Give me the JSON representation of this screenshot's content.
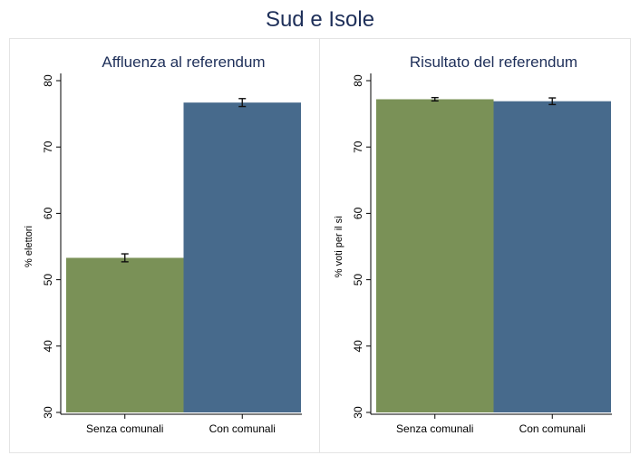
{
  "suptitle": "Sud e Isole",
  "chart_data": [
    {
      "type": "bar",
      "title": "Affluenza al referendum",
      "xlabel": "",
      "ylabel": "% elettori",
      "categories": [
        "Senza comunali",
        "Con comunali"
      ],
      "values": [
        53.3,
        76.7
      ],
      "error": [
        0.6,
        0.6
      ],
      "ylim": [
        30,
        80
      ],
      "yticks": [
        30,
        40,
        50,
        60,
        70,
        80
      ],
      "colors": [
        "#7a9157",
        "#476a8c"
      ],
      "grid": false,
      "legend": "none"
    },
    {
      "type": "bar",
      "title": "Risultato del referendum",
      "xlabel": "",
      "ylabel": "% voti per il sì",
      "categories": [
        "Senza comunali",
        "Con comunali"
      ],
      "values": [
        77.2,
        76.9
      ],
      "error": [
        0.25,
        0.5
      ],
      "ylim": [
        30,
        80
      ],
      "yticks": [
        30,
        40,
        50,
        60,
        70,
        80
      ],
      "colors": [
        "#7a9157",
        "#476a8c"
      ],
      "grid": false,
      "legend": "none"
    }
  ]
}
